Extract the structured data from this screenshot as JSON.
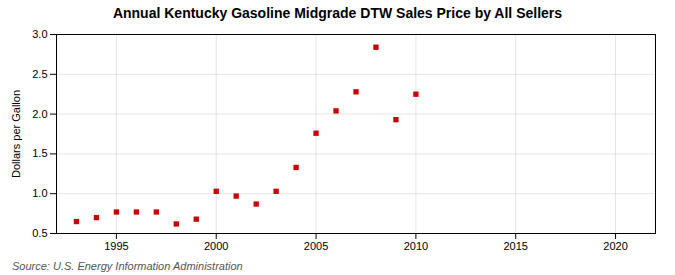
{
  "chart_data": {
    "type": "scatter",
    "title": "Annual Kentucky Gasoline Midgrade DTW Sales Price by All Sellers",
    "ylabel": "Dollars per Gallon",
    "annotations": [
      "Source: U.S. Energy Information Administration"
    ],
    "x": [
      1993,
      1994,
      1995,
      1996,
      1997,
      1998,
      1999,
      2000,
      2001,
      2002,
      2003,
      2004,
      2005,
      2006,
      2007,
      2008,
      2009,
      2010
    ],
    "values": [
      0.65,
      0.7,
      0.77,
      0.77,
      0.77,
      0.62,
      0.68,
      1.03,
      0.97,
      0.87,
      1.03,
      1.33,
      1.76,
      2.04,
      2.28,
      2.84,
      1.93,
      2.25
    ],
    "color": "#cc0000",
    "marker": "square",
    "xlim": [
      1992,
      2022
    ],
    "ylim": [
      0.5,
      3.0
    ],
    "xticks": [
      1995,
      2000,
      2005,
      2010,
      2015,
      2020
    ],
    "yticks": [
      0.5,
      {
        "value": 1.0,
        "label": "1.0"
      },
      1.5,
      {
        "value": 2.0,
        "label": "2.0"
      },
      2.5,
      {
        "value": 3.0,
        "label": "3.0"
      }
    ],
    "grid": true
  }
}
